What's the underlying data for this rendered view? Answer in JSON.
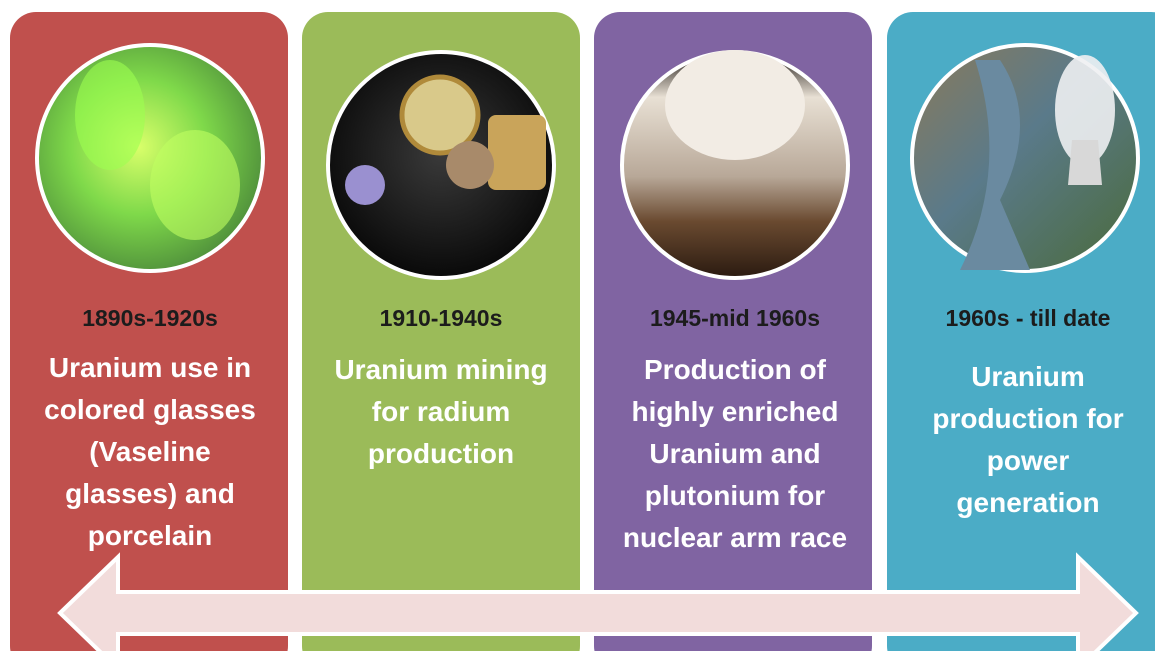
{
  "panels": [
    {
      "period": "1890s-1920s",
      "description": [
        "Uranium use in",
        "colored glasses",
        "(Vaseline",
        "glasses) and",
        "porcelain"
      ]
    },
    {
      "period": "1910-1940s",
      "description": [
        "Uranium mining",
        "for radium",
        "production"
      ]
    },
    {
      "period": "1945-mid 1960s",
      "description": [
        "Production of",
        "highly enriched",
        "Uranium and",
        "plutonium for",
        "nuclear arm race"
      ]
    },
    {
      "period": "1960s - till date",
      "description": [
        "Uranium",
        "production for",
        "power",
        "generation"
      ]
    }
  ]
}
